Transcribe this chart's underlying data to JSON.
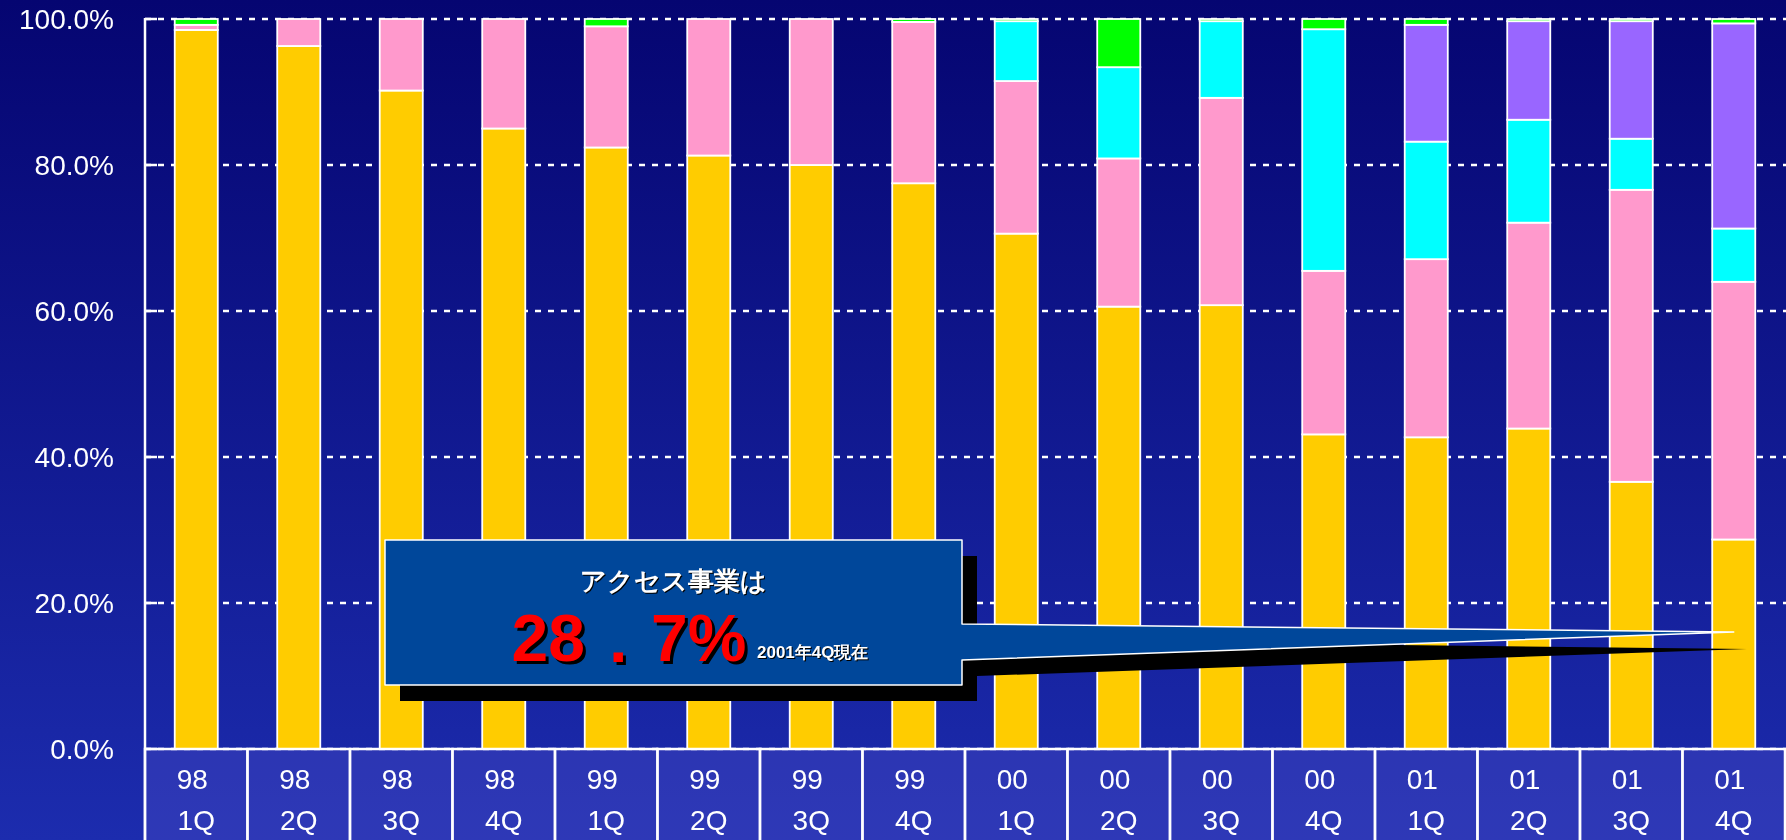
{
  "chart_data": {
    "type": "bar",
    "stacked": true,
    "categories": [
      "98 1Q",
      "98 2Q",
      "98 3Q",
      "98 4Q",
      "99 1Q",
      "99 2Q",
      "99 3Q",
      "99 4Q",
      "00 1Q",
      "00 2Q",
      "00 3Q",
      "00 4Q",
      "01 1Q",
      "01 2Q",
      "01 3Q",
      "01 4Q"
    ],
    "series": [
      {
        "color": "#ffcc00",
        "values": [
          98.5,
          96.3,
          90.2,
          85.0,
          82.4,
          81.3,
          80.0,
          77.5,
          70.6,
          60.6,
          60.8,
          43.1,
          42.7,
          43.9,
          36.6,
          28.7
        ]
      },
      {
        "color": "#ff99cc",
        "values": [
          0.7,
          3.7,
          9.8,
          15.0,
          16.6,
          18.7,
          20.0,
          22.1,
          20.9,
          20.3,
          28.4,
          22.4,
          24.4,
          28.2,
          40.0,
          35.3
        ]
      },
      {
        "color": "#00ffff",
        "values": [
          null,
          null,
          null,
          null,
          null,
          null,
          null,
          null,
          8.2,
          12.5,
          10.5,
          33.1,
          16.1,
          14.1,
          7.0,
          7.3
        ]
      },
      {
        "color": "#9966ff",
        "values": [
          null,
          null,
          null,
          null,
          null,
          null,
          null,
          null,
          null,
          null,
          null,
          null,
          16.0,
          13.5,
          16.1,
          28.1
        ]
      },
      {
        "color": "#00ff00",
        "values": [
          0.8,
          null,
          null,
          null,
          1.0,
          null,
          null,
          0.4,
          0.3,
          6.6,
          0.3,
          1.4,
          0.8,
          0.3,
          0.3,
          0.6
        ]
      }
    ],
    "ylim": [
      0,
      100
    ],
    "yticks": [
      {
        "value": 0,
        "label": "0.0%"
      },
      {
        "value": 20,
        "label": "20.0%"
      },
      {
        "value": 40,
        "label": "40.0%"
      },
      {
        "value": 60,
        "label": "60.0%"
      },
      {
        "value": 80,
        "label": "80.0%"
      },
      {
        "value": 100,
        "label": "100.0%"
      }
    ],
    "grid": "y",
    "annotations": [
      "アクセス事業は",
      "28．7%",
      "2001年4Q現在"
    ]
  }
}
